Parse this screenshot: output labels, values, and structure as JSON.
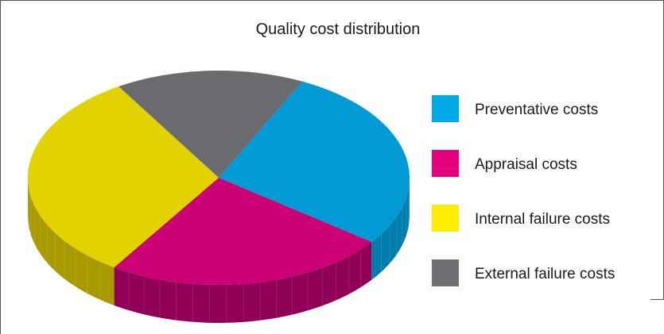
{
  "chart_data": {
    "type": "pie",
    "title": "Quality cost distribution",
    "legend_position": "right",
    "style": "3d",
    "series": [
      {
        "name": "",
        "values": [
          {
            "label": "Preventative costs",
            "value": 28,
            "color": "#009bd4"
          },
          {
            "label": "Appraisal costs",
            "value": 24,
            "color": "#cc0074"
          },
          {
            "label": "Internal failure costs",
            "value": 32,
            "color": "#e2d200"
          },
          {
            "label": "External failure costs",
            "value": 16,
            "color": "#6a6b6e"
          }
        ]
      }
    ],
    "legend_swatch_colors": [
      "#00a8e6",
      "#e6007e",
      "#ffec00",
      "#6e6e72"
    ],
    "side_colors": [
      "#007cad",
      "#8f0056",
      "#a89a00",
      "#4e4f52"
    ]
  }
}
